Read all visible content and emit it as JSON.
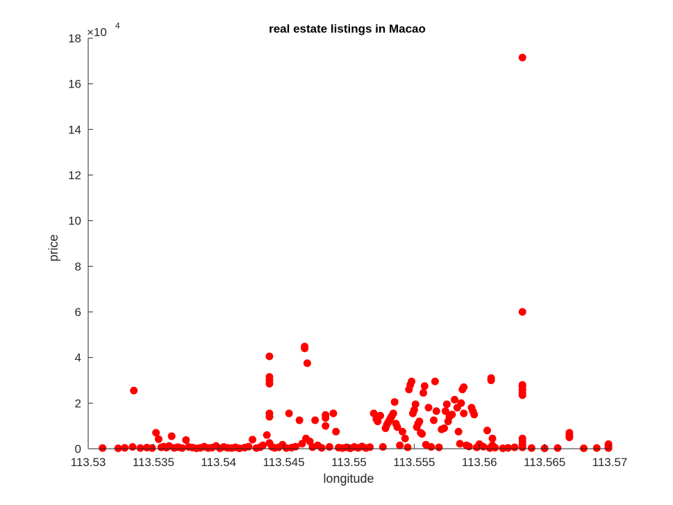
{
  "chart_data": {
    "type": "scatter",
    "title": "real estate listings in Macao",
    "xlabel": "longitude",
    "ylabel": "price",
    "xlim": [
      113.53,
      113.57
    ],
    "ylim": [
      0,
      180000
    ],
    "x_ticks": [
      113.53,
      113.535,
      113.54,
      113.545,
      113.55,
      113.555,
      113.56,
      113.565,
      113.57
    ],
    "x_tick_labels": [
      "113.53",
      "113.535",
      "113.54",
      "113.545",
      "113.55",
      "113.555",
      "113.56",
      "113.565",
      "113.57"
    ],
    "y_ticks": [
      0,
      20000,
      40000,
      60000,
      80000,
      100000,
      120000,
      140000,
      160000,
      180000
    ],
    "y_tick_labels": [
      "0",
      "2",
      "4",
      "6",
      "8",
      "10",
      "12",
      "14",
      "16",
      "18"
    ],
    "y_exponent_prefix": "×10",
    "y_exponent_power": "4",
    "grid": false,
    "marker_color": "#ff0000",
    "points": [
      [
        113.5311,
        300
      ],
      [
        113.5323,
        200
      ],
      [
        113.5328,
        400
      ],
      [
        113.5334,
        800
      ],
      [
        113.5335,
        25500
      ],
      [
        113.534,
        300
      ],
      [
        113.5345,
        500
      ],
      [
        113.5349,
        300
      ],
      [
        113.5352,
        7000
      ],
      [
        113.5354,
        4200
      ],
      [
        113.5356,
        600
      ],
      [
        113.5358,
        900
      ],
      [
        113.536,
        500
      ],
      [
        113.5362,
        1200
      ],
      [
        113.5364,
        5500
      ],
      [
        113.5366,
        400
      ],
      [
        113.5369,
        700
      ],
      [
        113.5372,
        300
      ],
      [
        113.5375,
        3800
      ],
      [
        113.5377,
        800
      ],
      [
        113.538,
        500
      ],
      [
        113.5383,
        200
      ],
      [
        113.5386,
        400
      ],
      [
        113.5389,
        900
      ],
      [
        113.5392,
        300
      ],
      [
        113.5395,
        500
      ],
      [
        113.5398,
        1200
      ],
      [
        113.5401,
        200
      ],
      [
        113.5404,
        800
      ],
      [
        113.5407,
        400
      ],
      [
        113.541,
        300
      ],
      [
        113.5413,
        600
      ],
      [
        113.5416,
        200
      ],
      [
        113.542,
        500
      ],
      [
        113.5423,
        900
      ],
      [
        113.5426,
        4000
      ],
      [
        113.5429,
        300
      ],
      [
        113.5432,
        700
      ],
      [
        113.5434,
        1500
      ],
      [
        113.5437,
        6000
      ],
      [
        113.5439,
        14000
      ],
      [
        113.5439,
        15500
      ],
      [
        113.5439,
        28500
      ],
      [
        113.5439,
        30000
      ],
      [
        113.5439,
        31500
      ],
      [
        113.5439,
        40500
      ],
      [
        113.5439,
        2500
      ],
      [
        113.5441,
        800
      ],
      [
        113.5443,
        400
      ],
      [
        113.5446,
        600
      ],
      [
        113.5449,
        1800
      ],
      [
        113.5452,
        300
      ],
      [
        113.5454,
        15500
      ],
      [
        113.5456,
        500
      ],
      [
        113.5459,
        900
      ],
      [
        113.5462,
        12500
      ],
      [
        113.5464,
        2200
      ],
      [
        113.5466,
        44000
      ],
      [
        113.5466,
        44800
      ],
      [
        113.5467,
        4500
      ],
      [
        113.5468,
        37500
      ],
      [
        113.547,
        3200
      ],
      [
        113.5472,
        700
      ],
      [
        113.5474,
        12500
      ],
      [
        113.5476,
        1500
      ],
      [
        113.5479,
        400
      ],
      [
        113.5482,
        10000
      ],
      [
        113.5482,
        13500
      ],
      [
        113.5482,
        14800
      ],
      [
        113.5485,
        800
      ],
      [
        113.5488,
        15500
      ],
      [
        113.549,
        7500
      ],
      [
        113.5492,
        500
      ],
      [
        113.5495,
        300
      ],
      [
        113.5498,
        600
      ],
      [
        113.5501,
        200
      ],
      [
        113.5504,
        800
      ],
      [
        113.5507,
        400
      ],
      [
        113.551,
        1000
      ],
      [
        113.5513,
        300
      ],
      [
        113.5516,
        700
      ],
      [
        113.5519,
        15500
      ],
      [
        113.5521,
        13000
      ],
      [
        113.5522,
        12000
      ],
      [
        113.5524,
        14500
      ],
      [
        113.5526,
        800
      ],
      [
        113.5528,
        9000
      ],
      [
        113.5529,
        10500
      ],
      [
        113.553,
        11500
      ],
      [
        113.5531,
        12500
      ],
      [
        113.5532,
        13500
      ],
      [
        113.5533,
        14500
      ],
      [
        113.5534,
        15500
      ],
      [
        113.5535,
        20500
      ],
      [
        113.5536,
        11000
      ],
      [
        113.5537,
        9500
      ],
      [
        113.5539,
        1500
      ],
      [
        113.5541,
        7500
      ],
      [
        113.5543,
        4500
      ],
      [
        113.5545,
        600
      ],
      [
        113.5546,
        26000
      ],
      [
        113.5547,
        28000
      ],
      [
        113.5548,
        29500
      ],
      [
        113.5549,
        15500
      ],
      [
        113.555,
        17000
      ],
      [
        113.5551,
        19500
      ],
      [
        113.5552,
        9500
      ],
      [
        113.5553,
        11000
      ],
      [
        113.5554,
        12000
      ],
      [
        113.5555,
        7000
      ],
      [
        113.5556,
        6500
      ],
      [
        113.5557,
        24500
      ],
      [
        113.5558,
        27500
      ],
      [
        113.5559,
        1800
      ],
      [
        113.5561,
        18000
      ],
      [
        113.5563,
        800
      ],
      [
        113.5565,
        12500
      ],
      [
        113.5566,
        29500
      ],
      [
        113.5567,
        16500
      ],
      [
        113.5569,
        600
      ],
      [
        113.5571,
        8500
      ],
      [
        113.5573,
        9000
      ],
      [
        113.5574,
        16500
      ],
      [
        113.5575,
        19500
      ],
      [
        113.5576,
        12000
      ],
      [
        113.5577,
        14000
      ],
      [
        113.5579,
        15000
      ],
      [
        113.5581,
        21500
      ],
      [
        113.5583,
        18000
      ],
      [
        113.5584,
        7500
      ],
      [
        113.5585,
        2200
      ],
      [
        113.5586,
        20000
      ],
      [
        113.5587,
        26000
      ],
      [
        113.5588,
        27000
      ],
      [
        113.5588,
        15500
      ],
      [
        113.559,
        1500
      ],
      [
        113.5592,
        1000
      ],
      [
        113.5594,
        18000
      ],
      [
        113.5595,
        16500
      ],
      [
        113.5596,
        15000
      ],
      [
        113.5598,
        600
      ],
      [
        113.56,
        2000
      ],
      [
        113.5603,
        900
      ],
      [
        113.5606,
        8000
      ],
      [
        113.5608,
        300
      ],
      [
        113.5609,
        30000
      ],
      [
        113.5609,
        31000
      ],
      [
        113.561,
        1500
      ],
      [
        113.561,
        4500
      ],
      [
        113.5612,
        500
      ],
      [
        113.5618,
        200
      ],
      [
        113.5622,
        400
      ],
      [
        113.5627,
        600
      ],
      [
        113.5633,
        171500
      ],
      [
        113.5633,
        60000
      ],
      [
        113.5633,
        23500
      ],
      [
        113.5633,
        24500
      ],
      [
        113.5633,
        26000
      ],
      [
        113.5633,
        27500
      ],
      [
        113.5633,
        28000
      ],
      [
        113.5633,
        4500
      ],
      [
        113.5633,
        3200
      ],
      [
        113.5633,
        1800
      ],
      [
        113.5633,
        600
      ],
      [
        113.564,
        300
      ],
      [
        113.565,
        200
      ],
      [
        113.566,
        300
      ],
      [
        113.5669,
        5000
      ],
      [
        113.5669,
        6000
      ],
      [
        113.5669,
        7000
      ],
      [
        113.568,
        200
      ],
      [
        113.569,
        300
      ],
      [
        113.5699,
        2000
      ],
      [
        113.5699,
        1500
      ],
      [
        113.5699,
        800
      ],
      [
        113.5699,
        300
      ]
    ]
  }
}
